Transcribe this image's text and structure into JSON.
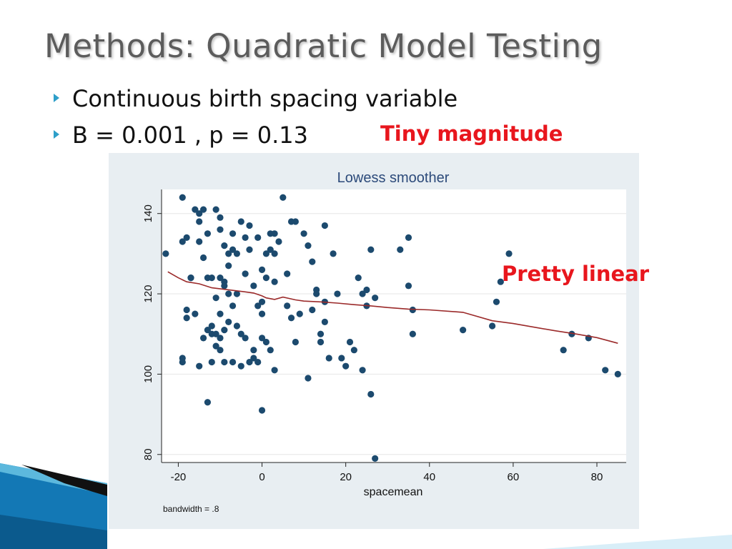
{
  "slide": {
    "title": "Methods: Quadratic Model Testing",
    "bullets": [
      {
        "icon": "triangle-bullet-icon",
        "text": "Continuous birth spacing variable"
      },
      {
        "icon": "triangle-bullet-icon",
        "text": "B = 0.001 , p = 0.13"
      }
    ],
    "callouts": {
      "tiny": "Tiny magnitude",
      "linear": "Pretty linear"
    },
    "colors": {
      "title": "#5c5c5c",
      "bullet_icon": "#2e9fc9",
      "callout": "#e8161d",
      "chart_background": "#e8eef2",
      "points": "#1c4a6e",
      "smoother_line": "#9b2a2a",
      "decor_blue": "#1378b5"
    }
  },
  "chart_data": {
    "type": "scatter",
    "title": "Lowess smoother",
    "xlabel": "spacemean",
    "ylabel": "",
    "note": "bandwidth = .8",
    "xlim": [
      -24,
      87
    ],
    "ylim": [
      78,
      146
    ],
    "xticks": [
      -20,
      0,
      20,
      40,
      60,
      80
    ],
    "yticks": [
      80,
      100,
      120,
      140
    ],
    "grid": true,
    "points": [
      [
        -23,
        130
      ],
      [
        -19,
        144
      ],
      [
        -17,
        124
      ],
      [
        -16,
        141
      ],
      [
        -15,
        140
      ],
      [
        -15,
        138
      ],
      [
        -14,
        141
      ],
      [
        -13,
        135
      ],
      [
        -13,
        124
      ],
      [
        -12,
        110
      ],
      [
        -11,
        141
      ],
      [
        -10,
        139
      ],
      [
        -10,
        136
      ],
      [
        -9,
        132
      ],
      [
        -8,
        130
      ],
      [
        -7,
        131
      ],
      [
        -7,
        135
      ],
      [
        -6,
        130
      ],
      [
        -5,
        138
      ],
      [
        -4,
        134
      ],
      [
        -3,
        131
      ],
      [
        -3,
        137
      ],
      [
        -1,
        134
      ],
      [
        -19,
        133
      ],
      [
        -18,
        134
      ],
      [
        -17,
        124
      ],
      [
        -15,
        133
      ],
      [
        -14,
        129
      ],
      [
        -12,
        124
      ],
      [
        -11,
        119
      ],
      [
        -10,
        124
      ],
      [
        -9,
        123
      ],
      [
        -9,
        122
      ],
      [
        -8,
        127
      ],
      [
        -8,
        120
      ],
      [
        -6,
        120
      ],
      [
        -4,
        125
      ],
      [
        -2,
        122
      ],
      [
        -18,
        114
      ],
      [
        -18,
        116
      ],
      [
        -16,
        115
      ],
      [
        -14,
        109
      ],
      [
        -13,
        111
      ],
      [
        -12,
        112
      ],
      [
        -11,
        110
      ],
      [
        -10,
        115
      ],
      [
        -10,
        109
      ],
      [
        -9,
        111
      ],
      [
        -8,
        113
      ],
      [
        -7,
        117
      ],
      [
        -6,
        112
      ],
      [
        -5,
        110
      ],
      [
        -4,
        109
      ],
      [
        -19,
        104
      ],
      [
        -19,
        103
      ],
      [
        -15,
        102
      ],
      [
        -12,
        103
      ],
      [
        -11,
        107
      ],
      [
        -10,
        106
      ],
      [
        -9,
        103
      ],
      [
        -7,
        103
      ],
      [
        -5,
        102
      ],
      [
        -3,
        103
      ],
      [
        -2,
        104
      ],
      [
        -2,
        106
      ],
      [
        -1,
        103
      ],
      [
        -13,
        93
      ],
      [
        0,
        91
      ],
      [
        0,
        118
      ],
      [
        0,
        115
      ],
      [
        0,
        109
      ],
      [
        0,
        126
      ],
      [
        1,
        130
      ],
      [
        1,
        124
      ],
      [
        2,
        135
      ],
      [
        2,
        131
      ],
      [
        3,
        130
      ],
      [
        3,
        135
      ],
      [
        3,
        123
      ],
      [
        4,
        133
      ],
      [
        5,
        144
      ],
      [
        6,
        125
      ],
      [
        6,
        117
      ],
      [
        7,
        138
      ],
      [
        7,
        114
      ],
      [
        8,
        138
      ],
      [
        9,
        115
      ],
      [
        10,
        135
      ],
      [
        11,
        132
      ],
      [
        11,
        99
      ],
      [
        12,
        128
      ],
      [
        12,
        116
      ],
      [
        13,
        121
      ],
      [
        13,
        120
      ],
      [
        14,
        110
      ],
      [
        14,
        108
      ],
      [
        15,
        137
      ],
      [
        15,
        118
      ],
      [
        15,
        113
      ],
      [
        16,
        104
      ],
      [
        17,
        130
      ],
      [
        18,
        120
      ],
      [
        19,
        104
      ],
      [
        20,
        102
      ],
      [
        21,
        108
      ],
      [
        22,
        106
      ],
      [
        23,
        124
      ],
      [
        24,
        120
      ],
      [
        24,
        101
      ],
      [
        25,
        121
      ],
      [
        25,
        117
      ],
      [
        26,
        131
      ],
      [
        26,
        95
      ],
      [
        27,
        119
      ],
      [
        27,
        79
      ],
      [
        33,
        131
      ],
      [
        35,
        134
      ],
      [
        35,
        122
      ],
      [
        36,
        116
      ],
      [
        36,
        110
      ],
      [
        48,
        111
      ],
      [
        55,
        112
      ],
      [
        56,
        118
      ],
      [
        57,
        123
      ],
      [
        59,
        130
      ],
      [
        72,
        106
      ],
      [
        74,
        110
      ],
      [
        78,
        109
      ],
      [
        82,
        101
      ],
      [
        85,
        100
      ],
      [
        3,
        101
      ],
      [
        8,
        108
      ],
      [
        2,
        106
      ],
      [
        -1,
        117
      ],
      [
        1,
        108
      ]
    ],
    "smoother": [
      [
        -22.5,
        125.5
      ],
      [
        -20,
        124
      ],
      [
        -18,
        123
      ],
      [
        -15,
        122.5
      ],
      [
        -12,
        121.5
      ],
      [
        -8,
        121
      ],
      [
        -4,
        120.5
      ],
      [
        -2,
        120.2
      ],
      [
        0,
        119.5
      ],
      [
        1,
        119
      ],
      [
        2,
        118.8
      ],
      [
        3,
        118.6
      ],
      [
        5,
        119.2
      ],
      [
        8,
        118.5
      ],
      [
        10,
        118.2
      ],
      [
        14,
        118
      ],
      [
        18,
        117.7
      ],
      [
        22,
        117.3
      ],
      [
        26,
        117
      ],
      [
        30,
        116.6
      ],
      [
        35,
        116.2
      ],
      [
        40,
        116
      ],
      [
        48,
        115.4
      ],
      [
        55,
        113.3
      ],
      [
        60,
        112.6
      ],
      [
        65,
        111.7
      ],
      [
        70,
        110.8
      ],
      [
        75,
        110
      ],
      [
        80,
        109.1
      ],
      [
        85,
        107.7
      ]
    ]
  }
}
